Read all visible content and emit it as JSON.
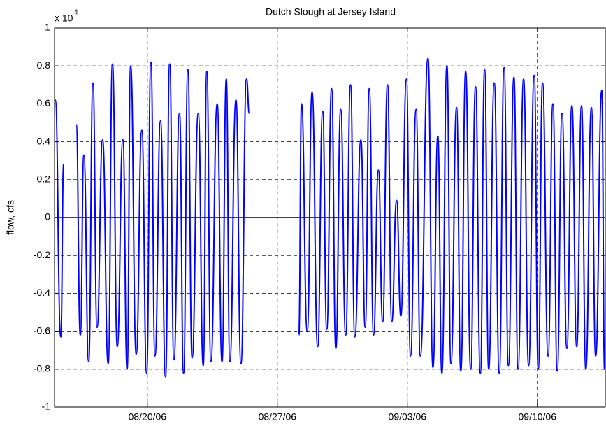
{
  "chart_data": {
    "type": "line",
    "title": "Dutch Slough at Jersey Island",
    "ylabel": "flow, cfs",
    "ylabel_multiplier": "x 10",
    "ylabel_multiplier_exponent": "4",
    "x": [
      0.04,
      0.34,
      0.49,
      0.83,
      1.17,
      1.39,
      1.58,
      1.84,
      2.07,
      2.29,
      2.59,
      2.89,
      3.12,
      3.38,
      3.68,
      3.91,
      4.1,
      4.4,
      4.7,
      4.96,
      5.19,
      5.41,
      5.71,
      5.98,
      6.2,
      6.43,
      6.73,
      6.95,
      7.18,
      7.41,
      7.74,
      8.01,
      8.2,
      8.42,
      8.76,
      9.02,
      9.25,
      9.44,
      9.77,
      10.04,
      10.34,
      10.49,
      12.0,
      13.16,
      13.3,
      13.61,
      13.87,
      14.17,
      14.44,
      14.66,
      14.92,
      15.15,
      15.41,
      15.68,
      15.94,
      16.17,
      16.5,
      16.73,
      16.95,
      17.18,
      17.44,
      17.67,
      17.93,
      18.16,
      18.42,
      18.65,
      18.95,
      19.17,
      19.47,
      19.7,
      20.11,
      20.38,
      20.64,
      20.86,
      21.13,
      21.35,
      21.65,
      21.88,
      22.14,
      22.41,
      22.67,
      22.93,
      23.16,
      23.38,
      23.68,
      23.95,
      24.21,
      24.44,
      24.74,
      24.96,
      25.26,
      25.53,
      25.83,
      26.05,
      26.28,
      26.58,
      26.84,
      27.07,
      27.33,
      27.59,
      27.86,
      28.12,
      28.38,
      28.61,
      28.91,
      29.14,
      29.47,
      29.62
    ],
    "series": [
      {
        "color": "#0000ff",
        "values": [
          0.62,
          -0.63,
          0.28,
          null,
          0.49,
          -0.62,
          0.33,
          -0.76,
          0.71,
          -0.58,
          0.41,
          -0.77,
          0.81,
          -0.68,
          0.41,
          -0.8,
          0.8,
          -0.72,
          0.46,
          -0.82,
          0.82,
          -0.73,
          0.51,
          -0.84,
          0.81,
          -0.75,
          0.55,
          -0.82,
          0.78,
          -0.74,
          0.55,
          -0.78,
          0.77,
          -0.76,
          0.6,
          -0.76,
          0.73,
          -0.76,
          0.62,
          -0.77,
          0.73,
          0.55,
          null,
          -0.62,
          0.6,
          -0.6,
          0.66,
          -0.68,
          0.56,
          -0.59,
          0.68,
          -0.69,
          0.57,
          -0.62,
          0.7,
          -0.63,
          0.41,
          -0.58,
          0.68,
          -0.62,
          0.25,
          -0.55,
          0.7,
          -0.55,
          0.09,
          -0.52,
          0.73,
          -0.73,
          0.57,
          -0.73,
          0.84,
          -0.79,
          0.43,
          -0.82,
          0.8,
          -0.77,
          0.58,
          -0.81,
          0.77,
          -0.8,
          0.69,
          -0.82,
          0.78,
          -0.8,
          0.71,
          -0.82,
          0.79,
          -0.78,
          0.74,
          -0.8,
          0.73,
          -0.78,
          0.75,
          -0.8,
          0.71,
          -0.73,
          0.6,
          -0.81,
          0.55,
          -0.69,
          0.59,
          -0.68,
          0.59,
          -0.8,
          0.58,
          -0.73,
          0.67,
          -0.8
        ]
      }
    ],
    "hlines": [
      0
    ],
    "xlim": [
      0,
      29.66
    ],
    "xticks": [
      {
        "value": 5,
        "label": "08/20/06"
      },
      {
        "value": 12,
        "label": "08/27/06"
      },
      {
        "value": 19,
        "label": "09/03/06"
      },
      {
        "value": 26,
        "label": "09/10/06"
      }
    ],
    "ylim": [
      -1,
      1
    ],
    "yticks": [
      -1,
      -0.8,
      -0.6,
      -0.4,
      -0.2,
      0,
      0.2,
      0.4,
      0.6,
      0.8,
      1
    ],
    "grid": true
  }
}
